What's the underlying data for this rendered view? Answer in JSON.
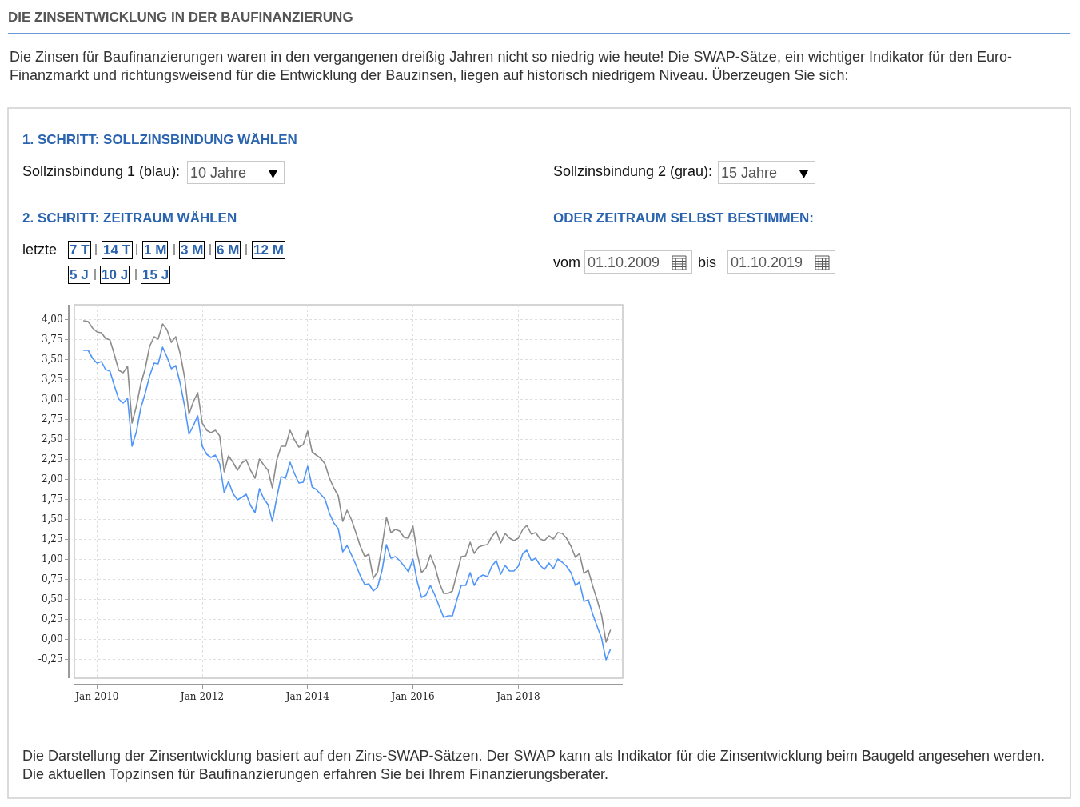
{
  "chart_data": {
    "type": "line",
    "title": "DIE ZINSENTWICKLUNG IN DER BAUFINANZIERUNG",
    "subtitle": "Die Zinsen für Baufinanzierungen waren in den vergangenen dreißig Jahren nicht so niedrig wie heute! Die SWAP-Sätze, ein wichtiger Indikator für den Euro-Finanzmarkt und richtungsweisend für die Entwicklung der Bauzinsen, liegen auf historisch niedrigem Niveau. Überzeugen Sie sich:",
    "annotations": [
      "1. SCHRITT: SOLLZINSBINDUNG WÄHLEN",
      "Sollzinsbindung 1 (blau):",
      "10 Jahre",
      "Sollzinsbindung 2 (grau):",
      "15 Jahre",
      "2. SCHRITT: ZEITRAUM WÄHLEN",
      "ODER ZEITRAUM SELBST BESTIMMEN:",
      "letzte",
      "7 T",
      "14 T",
      "1 M",
      "3 M",
      "6 M",
      "12 M",
      "5 J",
      "10 J",
      "15 J",
      "vom",
      "01.10.2009",
      "bis",
      "01.10.2019",
      "Die Darstellung der Zinsentwicklung basiert auf den Zins-SWAP-Sätzen. Der SWAP kann als Indikator für die Zinsentwicklung beim Baugeld angesehen werden. Die aktuellen Topzinsen für Baufinanzierungen erfahren Sie bei Ihrem Finanzierungsberater."
    ],
    "x": [
      "2009-10",
      "2009-11",
      "2009-12",
      "2010-01",
      "2010-02",
      "2010-03",
      "2010-04",
      "2010-05",
      "2010-06",
      "2010-07",
      "2010-08",
      "2010-09",
      "2010-10",
      "2010-11",
      "2010-12",
      "2011-01",
      "2011-02",
      "2011-03",
      "2011-04",
      "2011-05",
      "2011-06",
      "2011-07",
      "2011-08",
      "2011-09",
      "2011-10",
      "2011-11",
      "2011-12",
      "2012-01",
      "2012-02",
      "2012-03",
      "2012-04",
      "2012-05",
      "2012-06",
      "2012-07",
      "2012-08",
      "2012-09",
      "2012-10",
      "2012-11",
      "2012-12",
      "2013-01",
      "2013-02",
      "2013-03",
      "2013-04",
      "2013-05",
      "2013-06",
      "2013-07",
      "2013-08",
      "2013-09",
      "2013-10",
      "2013-11",
      "2013-12",
      "2014-01",
      "2014-02",
      "2014-03",
      "2014-04",
      "2014-05",
      "2014-06",
      "2014-07",
      "2014-08",
      "2014-09",
      "2014-10",
      "2014-11",
      "2014-12",
      "2015-01",
      "2015-02",
      "2015-03",
      "2015-04",
      "2015-05",
      "2015-06",
      "2015-07",
      "2015-08",
      "2015-09",
      "2015-10",
      "2015-11",
      "2015-12",
      "2016-01",
      "2016-02",
      "2016-03",
      "2016-04",
      "2016-05",
      "2016-06",
      "2016-07",
      "2016-08",
      "2016-09",
      "2016-10",
      "2016-11",
      "2016-12",
      "2017-01",
      "2017-02",
      "2017-03",
      "2017-04",
      "2017-05",
      "2017-06",
      "2017-07",
      "2017-08",
      "2017-09",
      "2017-10",
      "2017-11",
      "2017-12",
      "2018-01",
      "2018-02",
      "2018-03",
      "2018-04",
      "2018-05",
      "2018-06",
      "2018-07",
      "2018-08",
      "2018-09",
      "2018-10",
      "2018-11",
      "2018-12",
      "2019-01",
      "2019-02",
      "2019-03",
      "2019-04",
      "2019-05",
      "2019-06",
      "2019-07",
      "2019-08",
      "2019-09",
      "2019-10"
    ],
    "series": [
      {
        "color": "#8c8c8c",
        "values": [
          3.98,
          3.97,
          3.89,
          3.84,
          3.83,
          3.76,
          3.74,
          3.56,
          3.36,
          3.33,
          3.41,
          2.7,
          2.91,
          3.19,
          3.38,
          3.66,
          3.78,
          3.75,
          3.94,
          3.87,
          3.71,
          3.78,
          3.57,
          3.27,
          2.81,
          2.97,
          3.08,
          2.7,
          2.61,
          2.58,
          2.61,
          2.54,
          2.09,
          2.29,
          2.21,
          2.11,
          2.2,
          2.24,
          2.11,
          2.01,
          2.25,
          2.18,
          2.11,
          1.89,
          2.24,
          2.41,
          2.41,
          2.61,
          2.49,
          2.4,
          2.43,
          2.6,
          2.34,
          2.3,
          2.26,
          2.19,
          2.01,
          1.89,
          1.79,
          1.47,
          1.61,
          1.49,
          1.33,
          1.16,
          1.03,
          1.06,
          0.76,
          0.84,
          1.16,
          1.52,
          1.33,
          1.37,
          1.35,
          1.27,
          1.26,
          1.41,
          1.06,
          0.83,
          0.89,
          1.05,
          0.91,
          0.71,
          0.57,
          0.57,
          0.6,
          0.82,
          1.03,
          1.04,
          1.21,
          1.07,
          1.15,
          1.17,
          1.18,
          1.28,
          1.35,
          1.2,
          1.32,
          1.26,
          1.23,
          1.26,
          1.37,
          1.42,
          1.31,
          1.33,
          1.25,
          1.23,
          1.29,
          1.25,
          1.33,
          1.32,
          1.26,
          1.16,
          1.02,
          1.07,
          0.82,
          0.86,
          0.66,
          0.49,
          0.3,
          -0.04,
          0.11
        ]
      },
      {
        "color": "#5096fa",
        "values": [
          3.61,
          3.61,
          3.51,
          3.45,
          3.47,
          3.37,
          3.35,
          3.17,
          3.0,
          2.95,
          3.01,
          2.41,
          2.59,
          2.89,
          3.07,
          3.29,
          3.45,
          3.44,
          3.65,
          3.53,
          3.38,
          3.42,
          3.2,
          2.91,
          2.56,
          2.67,
          2.79,
          2.41,
          2.31,
          2.27,
          2.3,
          2.19,
          1.83,
          1.97,
          1.82,
          1.74,
          1.77,
          1.81,
          1.67,
          1.58,
          1.88,
          1.76,
          1.68,
          1.47,
          1.77,
          2.03,
          2.01,
          2.21,
          2.07,
          1.95,
          1.96,
          2.16,
          1.9,
          1.87,
          1.81,
          1.75,
          1.57,
          1.45,
          1.38,
          1.09,
          1.17,
          1.05,
          0.93,
          0.79,
          0.68,
          0.69,
          0.6,
          0.65,
          0.86,
          1.18,
          1.01,
          1.03,
          0.98,
          0.91,
          0.84,
          1.0,
          0.71,
          0.52,
          0.55,
          0.67,
          0.55,
          0.41,
          0.27,
          0.29,
          0.29,
          0.49,
          0.67,
          0.67,
          0.83,
          0.67,
          0.77,
          0.8,
          0.78,
          0.91,
          0.98,
          0.81,
          0.92,
          0.85,
          0.85,
          0.91,
          1.07,
          1.11,
          0.98,
          1.01,
          0.92,
          0.87,
          0.95,
          0.88,
          1.0,
          0.96,
          0.91,
          0.83,
          0.67,
          0.71,
          0.47,
          0.49,
          0.31,
          0.16,
          0.01,
          -0.26,
          -0.13
        ]
      }
    ],
    "xlim": [
      "2009-07-28",
      "2019-12-26"
    ],
    "ylim": [
      -0.49,
      4.18
    ],
    "xticks": [
      {
        "value": "2010-01",
        "label": "Jan-2010"
      },
      {
        "value": "2012-01",
        "label": "Jan-2012"
      },
      {
        "value": "2014-01",
        "label": "Jan-2014"
      },
      {
        "value": "2016-01",
        "label": "Jan-2016"
      },
      {
        "value": "2018-01",
        "label": "Jan-2018"
      }
    ],
    "yticks": [
      {
        "value": -0.25,
        "label": "-0,25"
      },
      {
        "value": 0,
        "label": "0,00"
      },
      {
        "value": 0.25,
        "label": "0,25"
      },
      {
        "value": 0.5,
        "label": "0,50"
      },
      {
        "value": 0.75,
        "label": "0,75"
      },
      {
        "value": 1,
        "label": "1,00"
      },
      {
        "value": 1.25,
        "label": "1,25"
      },
      {
        "value": 1.5,
        "label": "1,50"
      },
      {
        "value": 1.75,
        "label": "1,75"
      },
      {
        "value": 2,
        "label": "2,00"
      },
      {
        "value": 2.25,
        "label": "2,25"
      },
      {
        "value": 2.5,
        "label": "2,50"
      },
      {
        "value": 2.75,
        "label": "2,75"
      },
      {
        "value": 3,
        "label": "3,00"
      },
      {
        "value": 3.25,
        "label": "3,25"
      },
      {
        "value": 3.5,
        "label": "3,50"
      },
      {
        "value": 3.75,
        "label": "3,75"
      },
      {
        "value": 4,
        "label": "4,00"
      }
    ],
    "grid": true
  }
}
